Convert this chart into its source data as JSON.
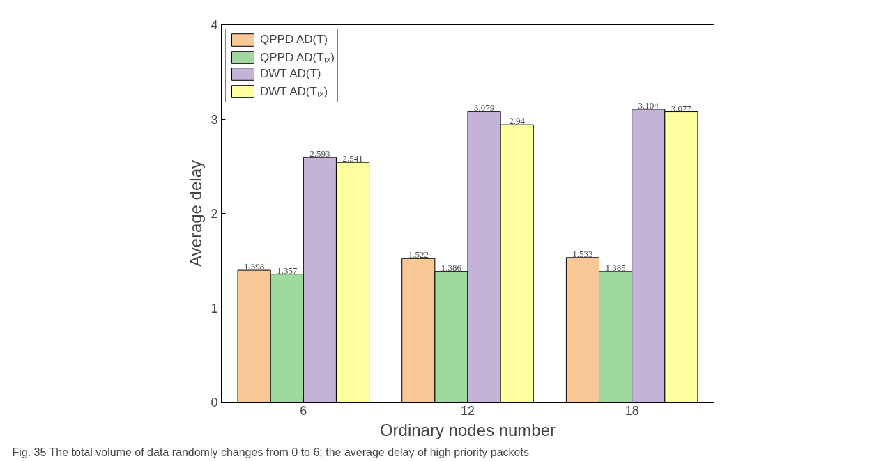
{
  "chart_data": {
    "type": "bar",
    "xlabel": "Ordinary nodes number",
    "ylabel": "Average delay",
    "categories": [
      "6",
      "12",
      "18"
    ],
    "series": [
      {
        "name": "QPPD AD(T)",
        "color": "#f9c897",
        "values": [
          1.398,
          1.522,
          1.533
        ]
      },
      {
        "name": "QPPD AD(Tₜₓ)",
        "color": "#a0d9a0",
        "values": [
          1.357,
          1.386,
          1.385
        ]
      },
      {
        "name": "DWT AD(T)",
        "color": "#c3b3d9",
        "values": [
          2.593,
          3.079,
          3.104
        ]
      },
      {
        "name": "DWT AD(Tₜₓ)",
        "color": "#ffffa0",
        "values": [
          2.541,
          2.94,
          3.077
        ]
      }
    ],
    "ylim": [
      0,
      4
    ],
    "yticks": [
      0,
      1,
      2,
      3,
      4
    ],
    "grid": false,
    "legend": "top left",
    "data_labels": true,
    "annotations": [
      "Fig. 35 The total volume of data randomly changes from 0 to 6; the average delay of high priority packets"
    ]
  }
}
